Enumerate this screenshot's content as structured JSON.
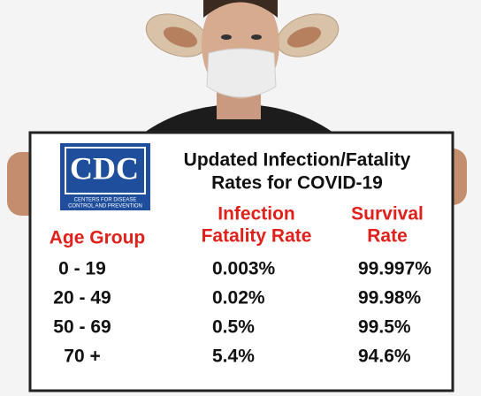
{
  "logo": {
    "text": "CDC",
    "subtitle_lines": [
      "CENTERS FOR DISEASE",
      "CONTROL AND PREVENTION"
    ]
  },
  "sign": {
    "title_lines": [
      "Updated Infection/Fatality",
      "Rates for COVID-19"
    ]
  },
  "table": {
    "headers": [
      [
        "Age Group"
      ],
      [
        "Infection",
        "Fatality Rate"
      ],
      [
        "Survival",
        "Rate"
      ]
    ],
    "rows": [
      [
        "0 - 19",
        "0.003%",
        "99.997%"
      ],
      [
        "20 - 49",
        "0.02%",
        "99.98%"
      ],
      [
        "50 - 69",
        "0.5%",
        "99.5%"
      ],
      [
        "70 +",
        "5.4%",
        "94.6%"
      ]
    ]
  }
}
